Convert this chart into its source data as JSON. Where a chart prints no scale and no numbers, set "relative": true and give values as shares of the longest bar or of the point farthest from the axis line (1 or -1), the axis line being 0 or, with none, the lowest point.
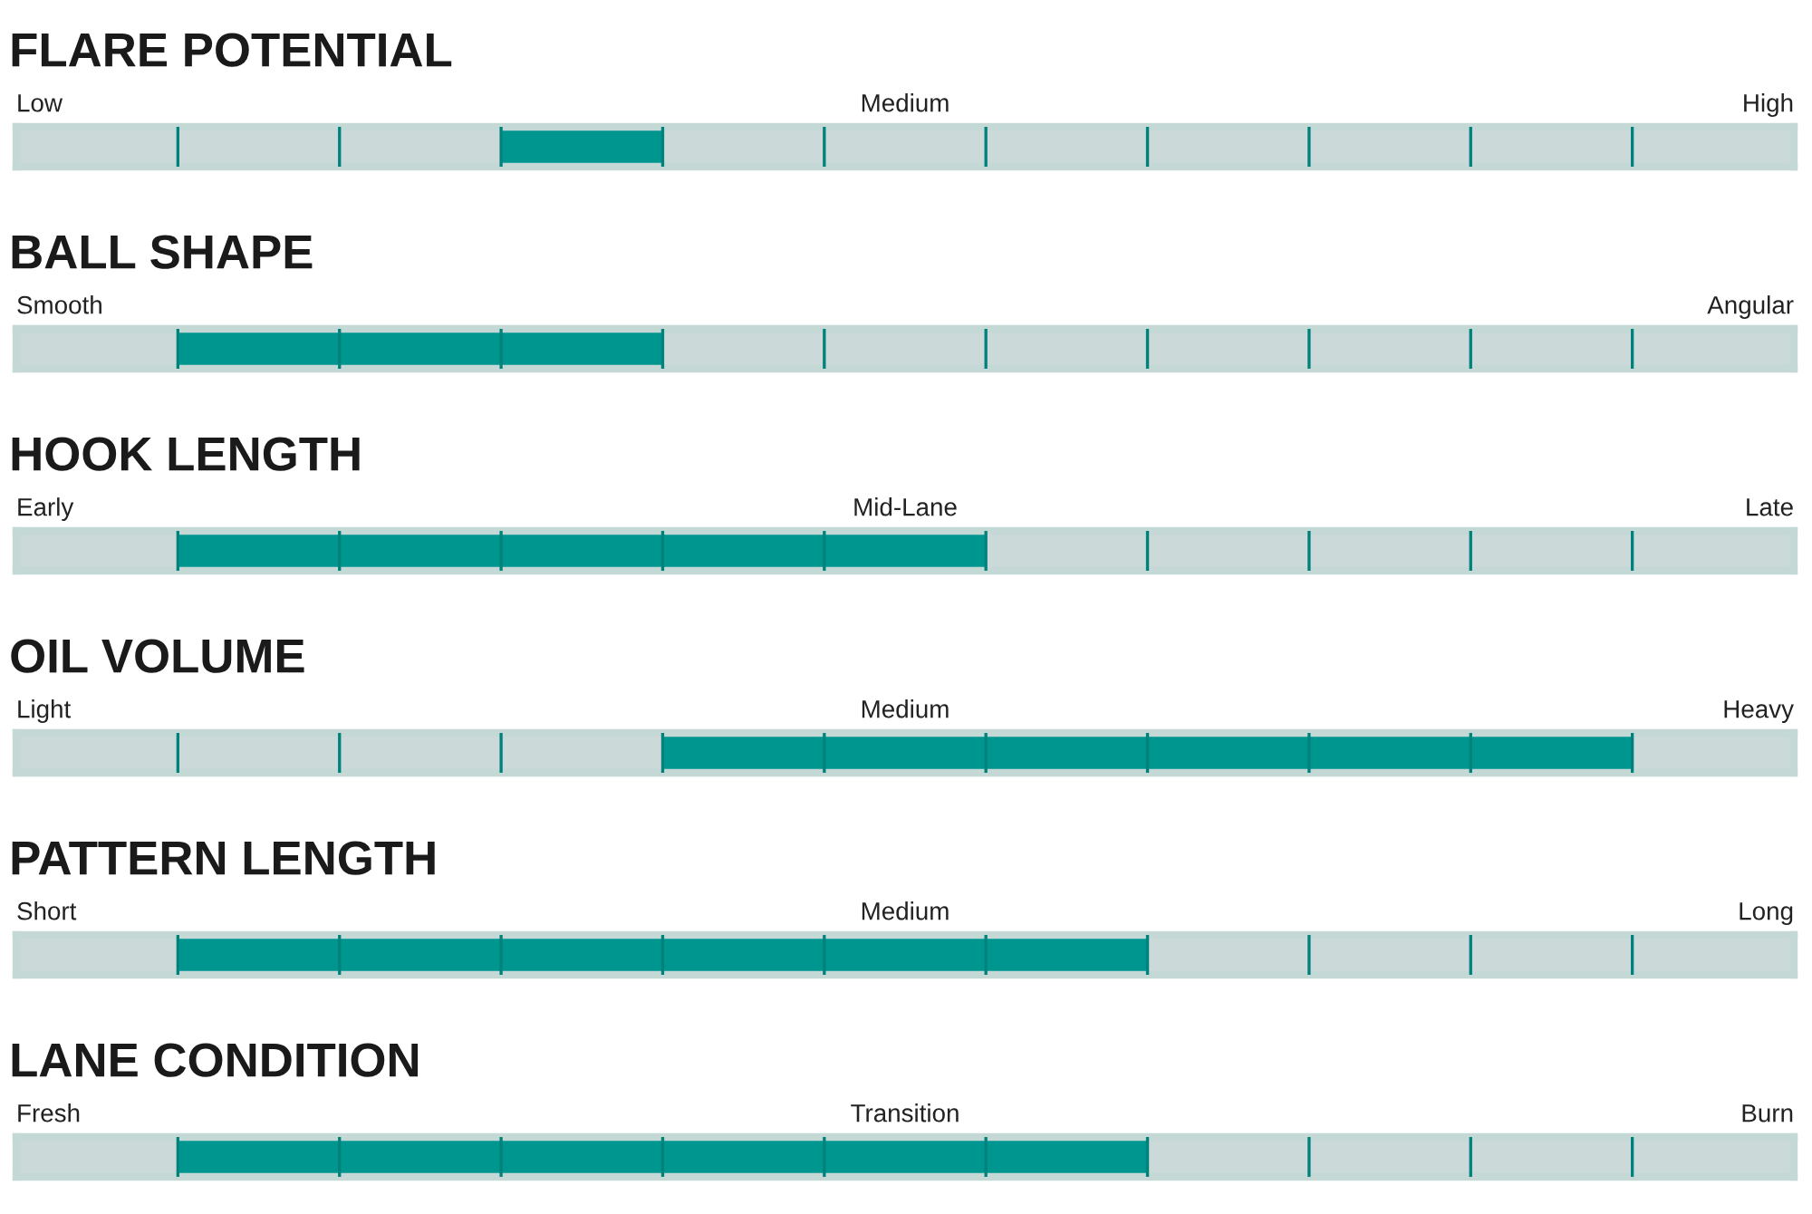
{
  "chart_data": [
    {
      "type": "bar",
      "orientation": "horizontal",
      "stacked": true,
      "relative": true,
      "title": "FLARE POTENTIAL",
      "annotations": [
        "Low",
        "Medium",
        "High"
      ],
      "categories": [
        null
      ],
      "series": [
        {
          "color": "#cbd9d8",
          "values": [
            0.273
          ]
        },
        {
          "color": "#009690",
          "values": [
            0.091
          ]
        },
        {
          "color": "#cbd9d8",
          "values": [
            0.636
          ]
        }
      ]
    },
    {
      "type": "bar",
      "orientation": "horizontal",
      "stacked": true,
      "relative": true,
      "title": "BALL SHAPE",
      "annotations": [
        "Smooth",
        "Angular"
      ],
      "categories": [
        null
      ],
      "series": [
        {
          "color": "#cbd9d8",
          "values": [
            0.091
          ]
        },
        {
          "color": "#009690",
          "values": [
            0.273
          ]
        },
        {
          "color": "#cbd9d8",
          "values": [
            0.636
          ]
        }
      ]
    },
    {
      "type": "bar",
      "orientation": "horizontal",
      "stacked": true,
      "relative": true,
      "title": "HOOK LENGTH",
      "annotations": [
        "Early",
        "Mid-Lane",
        "Late"
      ],
      "categories": [
        null
      ],
      "series": [
        {
          "color": "#cbd9d8",
          "values": [
            0.091
          ]
        },
        {
          "color": "#009690",
          "values": [
            0.454
          ]
        },
        {
          "color": "#cbd9d8",
          "values": [
            0.455
          ]
        }
      ]
    },
    {
      "type": "bar",
      "orientation": "horizontal",
      "stacked": true,
      "relative": true,
      "title": "OIL VOLUME",
      "annotations": [
        "Light",
        "Medium",
        "Heavy"
      ],
      "categories": [
        null
      ],
      "series": [
        {
          "color": "#cbd9d8",
          "values": [
            0.364
          ]
        },
        {
          "color": "#009690",
          "values": [
            0.545
          ]
        },
        {
          "color": "#cbd9d8",
          "values": [
            0.091
          ]
        }
      ]
    },
    {
      "type": "bar",
      "orientation": "horizontal",
      "stacked": true,
      "relative": true,
      "title": "PATTERN LENGTH",
      "annotations": [
        "Short",
        "Medium",
        "Long"
      ],
      "categories": [
        null
      ],
      "series": [
        {
          "color": "#cbd9d8",
          "values": [
            0.091
          ]
        },
        {
          "color": "#009690",
          "values": [
            0.545
          ]
        },
        {
          "color": "#cbd9d8",
          "values": [
            0.364
          ]
        }
      ]
    },
    {
      "type": "bar",
      "orientation": "horizontal",
      "stacked": true,
      "relative": true,
      "title": "LANE CONDITION",
      "annotations": [
        "Fresh",
        "Transition",
        "Burn"
      ],
      "categories": [
        null
      ],
      "series": [
        {
          "color": "#cbd9d8",
          "values": [
            0.091
          ]
        },
        {
          "color": "#009690",
          "values": [
            0.545
          ]
        },
        {
          "color": "#cbd9d8",
          "values": [
            0.364
          ]
        }
      ]
    }
  ]
}
